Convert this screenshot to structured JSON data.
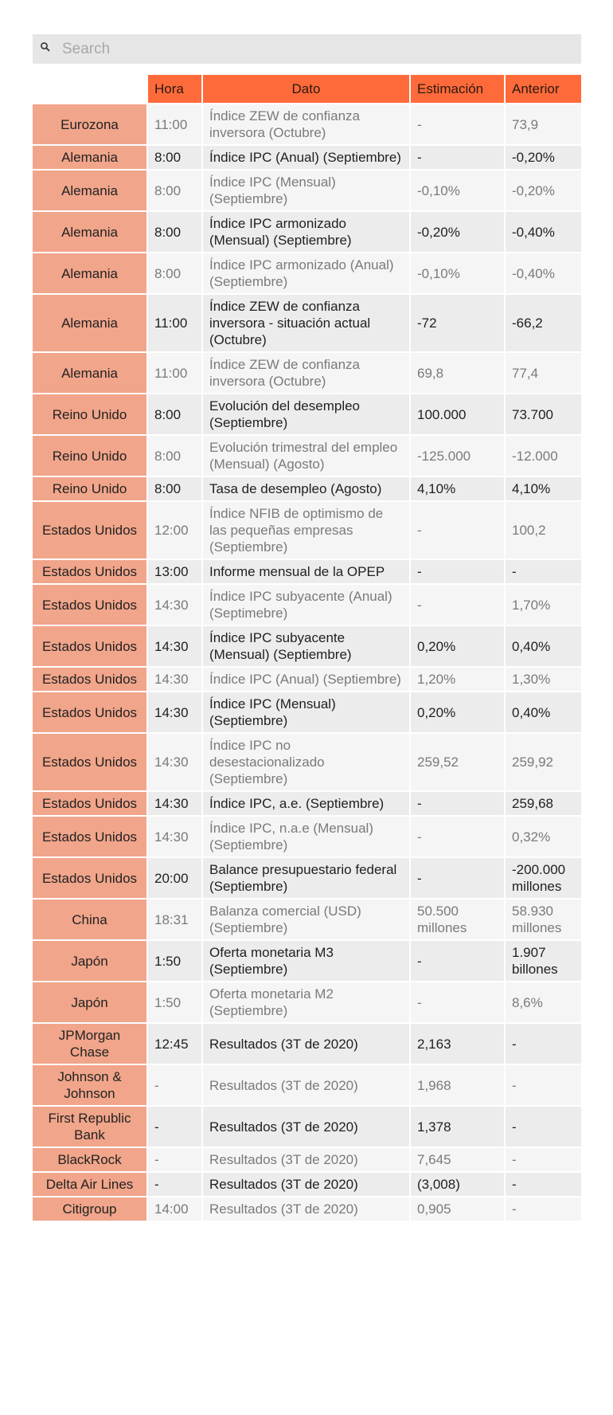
{
  "search": {
    "placeholder": "Search"
  },
  "headers": [
    "Hora",
    "Dato",
    "Estimación",
    "Anterior"
  ],
  "rows": [
    {
      "country": "Eurozona",
      "time": "11:00",
      "event": "Índice ZEW de confianza inversora (Octubre)",
      "forecast": "-",
      "previous": "73,9"
    },
    {
      "country": "Alemania",
      "time": "8:00",
      "event": "Índice IPC (Anual) (Septiembre)",
      "forecast": "-",
      "previous": "-0,20%"
    },
    {
      "country": "Alemania",
      "time": "8:00",
      "event": "Índice IPC (Mensual) (Septiembre)",
      "forecast": "-0,10%",
      "previous": "-0,20%"
    },
    {
      "country": "Alemania",
      "time": "8:00",
      "event": "Índice IPC armonizado (Mensual) (Septiembre)",
      "forecast": "-0,20%",
      "previous": "-0,40%"
    },
    {
      "country": "Alemania",
      "time": "8:00",
      "event": "Índice IPC armonizado (Anual) (Septiembre)",
      "forecast": "-0,10%",
      "previous": "-0,40%"
    },
    {
      "country": "Alemania",
      "time": "11:00",
      "event": "Índice ZEW de confianza inversora - situación actual (Octubre)",
      "forecast": "-72",
      "previous": "-66,2"
    },
    {
      "country": "Alemania",
      "time": "11:00",
      "event": "Índice ZEW de confianza inversora (Octubre)",
      "forecast": "69,8",
      "previous": "77,4"
    },
    {
      "country": "Reino Unido",
      "time": "8:00",
      "event": "Evolución del desempleo (Septiembre)",
      "forecast": "100.000",
      "previous": "73.700"
    },
    {
      "country": "Reino Unido",
      "time": "8:00",
      "event": "Evolución trimestral del empleo (Mensual) (Agosto)",
      "forecast": "-125.000",
      "previous": "-12.000"
    },
    {
      "country": "Reino Unido",
      "time": "8:00",
      "event": "Tasa de desempleo (Agosto)",
      "forecast": "4,10%",
      "previous": "4,10%"
    },
    {
      "country": "Estados Unidos",
      "time": "12:00",
      "event": "Índice NFIB de optimismo de las pequeñas empresas (Septiembre)",
      "forecast": "-",
      "previous": "100,2"
    },
    {
      "country": "Estados Unidos",
      "time": "13:00",
      "event": "Informe mensual de la OPEP",
      "forecast": "-",
      "previous": "-"
    },
    {
      "country": "Estados Unidos",
      "time": "14:30",
      "event": "Índice IPC subyacente (Anual) (Septimebre)",
      "forecast": "-",
      "previous": "1,70%"
    },
    {
      "country": "Estados Unidos",
      "time": "14:30",
      "event": "Índice IPC subyacente (Mensual) (Septiembre)",
      "forecast": "0,20%",
      "previous": "0,40%"
    },
    {
      "country": "Estados Unidos",
      "time": "14:30",
      "event": "Índice IPC (Anual) (Septiembre)",
      "forecast": "1,20%",
      "previous": "1,30%"
    },
    {
      "country": "Estados Unidos",
      "time": "14:30",
      "event": "Índice IPC (Mensual) (Septiembre)",
      "forecast": "0,20%",
      "previous": "0,40%"
    },
    {
      "country": "Estados Unidos",
      "time": "14:30",
      "event": "Índice IPC no desestacionalizado (Septiembre)",
      "forecast": "259,52",
      "previous": "259,92"
    },
    {
      "country": "Estados Unidos",
      "time": "14:30",
      "event": "Índice IPC, a.e. (Septiembre)",
      "forecast": "-",
      "previous": "259,68"
    },
    {
      "country": "Estados Unidos",
      "time": "14:30",
      "event": "Índice IPC, n.a.e (Mensual) (Septiembre)",
      "forecast": "-",
      "previous": "0,32%"
    },
    {
      "country": "Estados Unidos",
      "time": "20:00",
      "event": "Balance presupuestario federal (Septiembre)",
      "forecast": "-",
      "previous": "-200.000 millones"
    },
    {
      "country": "China",
      "time": "18:31",
      "event": "Balanza comercial (USD) (Septiembre)",
      "forecast": "50.500 millones",
      "previous": "58.930 millones"
    },
    {
      "country": "Japón",
      "time": "1:50",
      "event": "Oferta monetaria M3 (Septiembre)",
      "forecast": "-",
      "previous": "1.907 billones"
    },
    {
      "country": "Japón",
      "time": "1:50",
      "event": "Oferta monetaria M2 (Septiembre)",
      "forecast": "-",
      "previous": "8,6%"
    },
    {
      "country": "JPMorgan Chase",
      "time": "12:45",
      "event": "Resultados (3T de 2020)",
      "forecast": "2,163",
      "previous": "-"
    },
    {
      "country": "Johnson & Johnson",
      "time": "-",
      "event": "Resultados (3T de 2020)",
      "forecast": "1,968",
      "previous": "-"
    },
    {
      "country": "First Republic Bank",
      "time": "-",
      "event": "Resultados (3T de 2020)",
      "forecast": "1,378",
      "previous": "-"
    },
    {
      "country": "BlackRock",
      "time": "-",
      "event": "Resultados (3T de 2020)",
      "forecast": "7,645",
      "previous": "-"
    },
    {
      "country": "Delta Air Lines",
      "time": "-",
      "event": "Resultados (3T de 2020)",
      "forecast": "(3,008)",
      "previous": "-"
    },
    {
      "country": "Citigroup",
      "time": "14:00",
      "event": "Resultados (3T de 2020)",
      "forecast": "0,905",
      "previous": "-"
    }
  ],
  "colors": {
    "header": "#ff6a3a",
    "country_cell": "#f1a58a",
    "row_a": "#f5f5f5",
    "row_b": "#ececec"
  },
  "icons": {
    "search": "search-icon"
  }
}
